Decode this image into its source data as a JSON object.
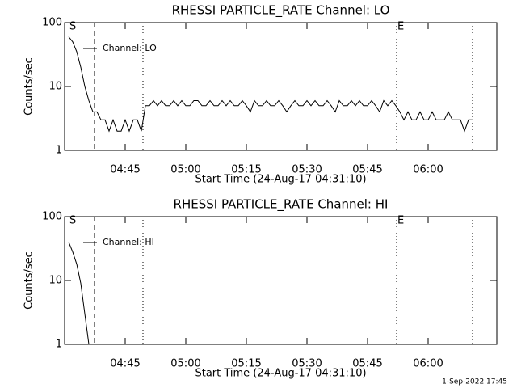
{
  "chart_data": [
    {
      "type": "line",
      "title": "RHESSI PARTICLE_RATE Channel: LO",
      "xlabel": "Start Time (24-Aug-17 04:31:10)",
      "ylabel": "Counts/sec",
      "log_y": true,
      "ylim": [
        1,
        100
      ],
      "yticks": [
        1,
        10,
        100
      ],
      "xlim": [
        "04:30",
        "06:17"
      ],
      "xticks": [
        "04:45",
        "05:00",
        "05:15",
        "05:30",
        "05:45",
        "06:00"
      ],
      "x": [
        "04:31",
        "04:32",
        "04:33",
        "04:34",
        "04:35",
        "04:36",
        "04:37",
        "04:38",
        "04:39",
        "04:40",
        "04:41",
        "04:42",
        "04:43",
        "04:44",
        "04:45",
        "04:46",
        "04:47",
        "04:48",
        "04:49",
        "04:50",
        "04:51",
        "04:52",
        "04:53",
        "04:54",
        "04:55",
        "04:56",
        "04:57",
        "04:58",
        "04:59",
        "05:00",
        "05:01",
        "05:02",
        "05:03",
        "05:04",
        "05:05",
        "05:06",
        "05:07",
        "05:08",
        "05:09",
        "05:10",
        "05:11",
        "05:12",
        "05:13",
        "05:14",
        "05:15",
        "05:16",
        "05:17",
        "05:18",
        "05:19",
        "05:20",
        "05:21",
        "05:22",
        "05:23",
        "05:24",
        "05:25",
        "05:26",
        "05:27",
        "05:28",
        "05:29",
        "05:30",
        "05:31",
        "05:32",
        "05:33",
        "05:34",
        "05:35",
        "05:36",
        "05:37",
        "05:38",
        "05:39",
        "05:40",
        "05:41",
        "05:42",
        "05:43",
        "05:44",
        "05:45",
        "05:46",
        "05:47",
        "05:48",
        "05:49",
        "05:50",
        "05:51",
        "05:52",
        "05:53",
        "05:54",
        "05:55",
        "05:56",
        "05:57",
        "05:58",
        "05:59",
        "06:00",
        "06:01",
        "06:02",
        "06:03",
        "06:04",
        "06:05",
        "06:06",
        "06:07",
        "06:08",
        "06:09",
        "06:10",
        "06:11"
      ],
      "series": [
        {
          "name": "Channel: LO",
          "color": "#000000",
          "values": [
            60,
            50,
            35,
            20,
            10,
            6,
            4,
            4,
            3,
            3,
            2,
            3,
            2,
            2,
            3,
            2,
            3,
            3,
            2,
            5,
            5,
            6,
            5,
            6,
            5,
            5,
            6,
            5,
            6,
            5,
            5,
            6,
            6,
            5,
            5,
            6,
            5,
            5,
            6,
            5,
            6,
            5,
            5,
            6,
            5,
            4,
            6,
            5,
            5,
            6,
            5,
            5,
            6,
            5,
            4,
            5,
            6,
            5,
            5,
            6,
            5,
            6,
            5,
            5,
            6,
            5,
            4,
            6,
            5,
            5,
            6,
            5,
            6,
            5,
            5,
            6,
            5,
            4,
            6,
            5,
            6,
            5,
            4,
            3,
            4,
            3,
            3,
            4,
            3,
            3,
            4,
            3,
            3,
            3,
            4,
            3,
            3,
            3,
            2,
            3,
            3
          ]
        }
      ],
      "vlines": [
        {
          "x": "04:37:24",
          "style": "dashed"
        },
        {
          "x": "04:49:24",
          "style": "dotted"
        },
        {
          "x": "05:52:12",
          "style": "dotted"
        },
        {
          "x": "06:11",
          "style": "dotted"
        }
      ],
      "annotations": [
        {
          "text": "S",
          "x": "04:31"
        },
        {
          "text": "E",
          "x": "05:52:12"
        }
      ]
    },
    {
      "type": "line",
      "title": "RHESSI PARTICLE_RATE Channel: HI",
      "xlabel": "Start Time (24-Aug-17 04:31:10)",
      "ylabel": "Counts/sec",
      "log_y": true,
      "ylim": [
        1,
        100
      ],
      "yticks": [
        1,
        10,
        100
      ],
      "xlim": [
        "04:30",
        "06:17"
      ],
      "xticks": [
        "04:45",
        "05:00",
        "05:15",
        "05:30",
        "05:45",
        "06:00"
      ],
      "x": [
        "04:31",
        "04:32",
        "04:33",
        "04:34",
        "04:35",
        "04:36"
      ],
      "series": [
        {
          "name": "Channel: HI",
          "color": "#000000",
          "values": [
            40,
            28,
            18,
            9,
            3,
            1
          ]
        }
      ],
      "vlines": [
        {
          "x": "04:37:24",
          "style": "dashed"
        },
        {
          "x": "04:49:24",
          "style": "dotted"
        },
        {
          "x": "05:52:12",
          "style": "dotted"
        },
        {
          "x": "06:11",
          "style": "dotted"
        }
      ],
      "annotations": [
        {
          "text": "S",
          "x": "04:31"
        },
        {
          "text": "E",
          "x": "05:52:12"
        }
      ]
    }
  ],
  "footer": "1-Sep-2022 17:45"
}
